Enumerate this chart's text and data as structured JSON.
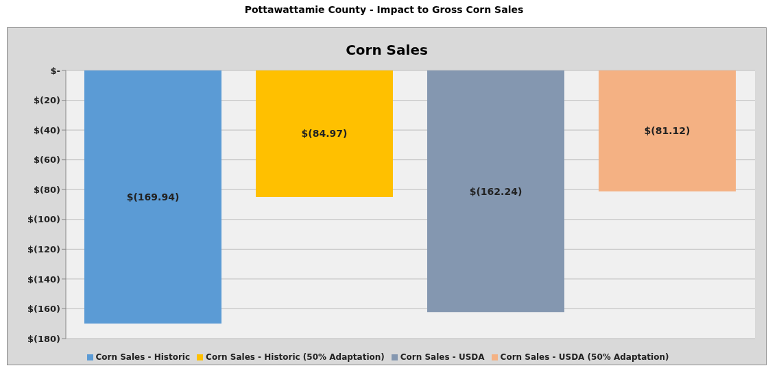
{
  "chart_data": {
    "type": "bar",
    "title": "Pottawattamie County - Impact to Gross Corn Sales",
    "subtitle": "Corn Sales",
    "categories": [
      null
    ],
    "series": [
      {
        "name": "Corn Sales - Historic",
        "color": "#5b9bd5",
        "values": [
          -169.94
        ],
        "value_labels": [
          "$(169.94)"
        ]
      },
      {
        "name": "Corn Sales - Historic (50% Adaptation)",
        "color": "#ffc000",
        "values": [
          -84.97
        ],
        "value_labels": [
          "$(84.97)"
        ]
      },
      {
        "name": "Corn Sales - USDA",
        "color": "#8497b0",
        "values": [
          -162.24
        ],
        "value_labels": [
          "$(162.24)"
        ]
      },
      {
        "name": "Corn Sales - USDA (50% Adaptation)",
        "color": "#f4b183",
        "values": [
          -81.12
        ],
        "value_labels": [
          "$(81.12)"
        ]
      }
    ],
    "ylim": [
      -180,
      0
    ],
    "yticks": [
      {
        "value": 0,
        "label": "$-"
      },
      {
        "value": -20,
        "label": "$(20)"
      },
      {
        "value": -40,
        "label": "$(40)"
      },
      {
        "value": -60,
        "label": "$(60)"
      },
      {
        "value": -80,
        "label": "$(80)"
      },
      {
        "value": -100,
        "label": "$(100)"
      },
      {
        "value": -120,
        "label": "$(120)"
      },
      {
        "value": -140,
        "label": "$(140)"
      },
      {
        "value": -160,
        "label": "$(160)"
      },
      {
        "value": -180,
        "label": "$(180)"
      }
    ],
    "grid": "y",
    "legend": "bottom"
  }
}
